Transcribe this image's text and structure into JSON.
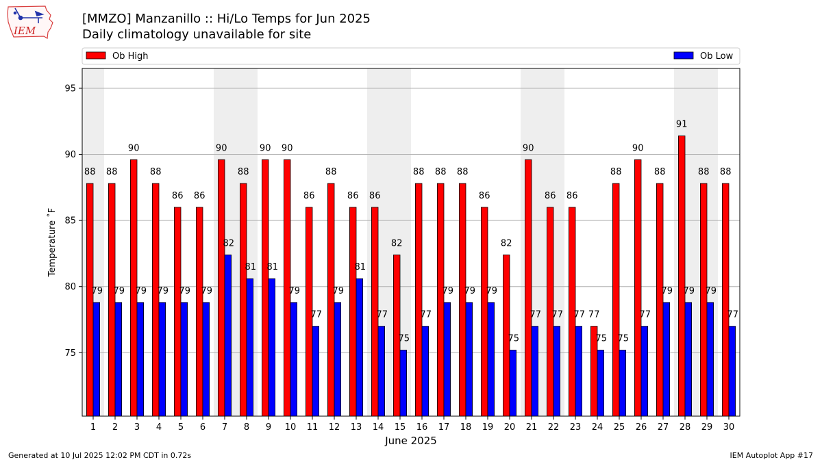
{
  "header": {
    "title_line1": "[MMZO] Manzanillo :: Hi/Lo Temps for Jun 2025",
    "title_line2": "Daily climatology unavailable for site",
    "logo_text": "IEM"
  },
  "footer": {
    "generated": "Generated at 10 Jul 2025 12:02 PM CDT in 0.72s",
    "app": "IEM Autoplot App #17"
  },
  "colors": {
    "high": "#ff0000",
    "low": "#0000ff",
    "weekend_band": "#eeeeee",
    "grid": "#b0b0b0"
  },
  "chart_data": {
    "type": "bar",
    "title": "[MMZO] Manzanillo :: Hi/Lo Temps for Jun 2025",
    "subtitle": "Daily climatology unavailable for site",
    "xlabel": "June 2025",
    "ylabel": "Temperature ˚F",
    "ylim": [
      70.2,
      96.5
    ],
    "yticks": [
      75,
      80,
      85,
      90,
      95
    ],
    "grid": true,
    "legend_placement": "top, above plot",
    "categories": [
      "1",
      "2",
      "3",
      "4",
      "5",
      "6",
      "7",
      "8",
      "9",
      "10",
      "11",
      "12",
      "13",
      "14",
      "15",
      "16",
      "17",
      "18",
      "19",
      "20",
      "21",
      "22",
      "23",
      "24",
      "25",
      "26",
      "27",
      "28",
      "29",
      "30"
    ],
    "weekend_days": [
      1,
      7,
      8,
      14,
      15,
      21,
      22,
      28,
      29
    ],
    "series": [
      {
        "name": "Ob High",
        "color": "#ff0000",
        "values": [
          87.8,
          87.8,
          89.6,
          87.8,
          86.0,
          86.0,
          89.6,
          87.8,
          89.6,
          89.6,
          86.0,
          87.8,
          86.0,
          86.0,
          82.4,
          87.8,
          87.8,
          87.8,
          86.0,
          82.4,
          89.6,
          86.0,
          86.0,
          77.0,
          87.8,
          89.6,
          87.8,
          91.4,
          87.8,
          87.8
        ],
        "labels": [
          "88",
          "88",
          "90",
          "88",
          "86",
          "86",
          "90",
          "88",
          "90",
          "90",
          "86",
          "88",
          "86",
          "86",
          "82",
          "88",
          "88",
          "88",
          "86",
          "82",
          "90",
          "86",
          "86",
          "77",
          "88",
          "90",
          "88",
          "91",
          "88",
          "88"
        ]
      },
      {
        "name": "Ob Low",
        "color": "#0000ff",
        "values": [
          78.8,
          78.8,
          78.8,
          78.8,
          78.8,
          78.8,
          82.4,
          80.6,
          80.6,
          78.8,
          77.0,
          78.8,
          80.6,
          77.0,
          75.2,
          77.0,
          78.8,
          78.8,
          78.8,
          75.2,
          77.0,
          77.0,
          77.0,
          75.2,
          75.2,
          77.0,
          78.8,
          78.8,
          78.8,
          77.0
        ],
        "labels": [
          "79",
          "79",
          "79",
          "79",
          "79",
          "79",
          "82",
          "81",
          "81",
          "79",
          "77",
          "79",
          "81",
          "77",
          "75",
          "77",
          "79",
          "79",
          "79",
          "75",
          "77",
          "77",
          "77",
          "75",
          "75",
          "77",
          "79",
          "79",
          "79",
          "77"
        ]
      }
    ]
  }
}
